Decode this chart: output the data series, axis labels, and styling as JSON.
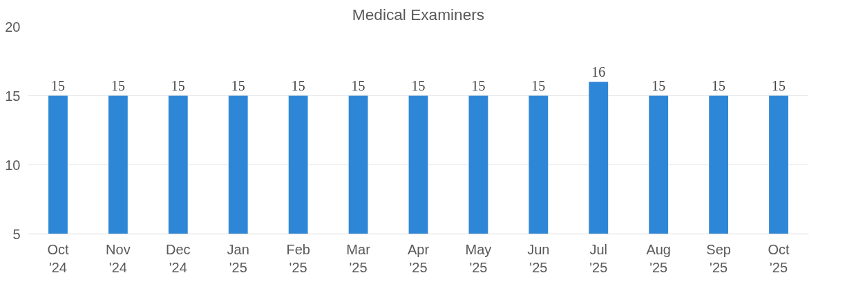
{
  "chart_data": {
    "type": "bar",
    "title": "Medical Examiners",
    "categories": [
      "Oct\n'24",
      "Nov\n'24",
      "Dec\n'24",
      "Jan\n'25",
      "Feb\n'25",
      "Mar\n'25",
      "Apr\n'25",
      "May\n'25",
      "Jun\n'25",
      "Jul\n'25",
      "Aug\n'25",
      "Sep\n'25",
      "Oct\n'25"
    ],
    "values": [
      15,
      15,
      15,
      15,
      15,
      15,
      15,
      15,
      15,
      16,
      15,
      15,
      15
    ],
    "color": "#2e86d6",
    "ylim": [
      5,
      20
    ],
    "yticks": [
      5,
      10,
      15,
      20
    ],
    "grid": "y",
    "data_labels": true
  }
}
